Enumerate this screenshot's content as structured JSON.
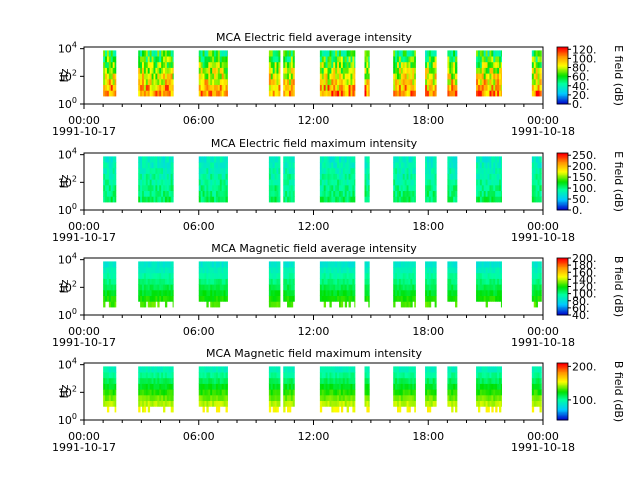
{
  "chart_data": [
    {
      "type": "heatmap",
      "title": "MCA  Electric field average intensity",
      "ylabel": "Hz",
      "colorbar_label": "E field (dB)",
      "colorbar_range": [
        0,
        125
      ],
      "colorbar_ticks": [
        "0.",
        "20.",
        "40.",
        "60.",
        "80.",
        "100.",
        "120."
      ],
      "y_ticks": [
        "10^0",
        "10^2",
        "10^4"
      ],
      "x_ticks": [
        "00:00",
        "06:00",
        "12:00",
        "18:00",
        "00:00"
      ],
      "x_date_start": "1991-10-17",
      "x_date_end": "1991-10-18",
      "data_intervals_utc": [
        [
          "01:00",
          "01:40"
        ],
        [
          "02:50",
          "04:40"
        ],
        [
          "06:00",
          "07:30"
        ],
        [
          "09:40",
          "10:15"
        ],
        [
          "10:25",
          "11:00"
        ],
        [
          "12:20",
          "14:10"
        ],
        [
          "14:40",
          "14:55"
        ],
        [
          "16:10",
          "17:20"
        ],
        [
          "17:50",
          "18:25"
        ],
        [
          "19:00",
          "19:30"
        ],
        [
          "20:30",
          "21:50"
        ],
        [
          "23:25",
          "23:55"
        ]
      ],
      "colormap": "rainbow"
    },
    {
      "type": "heatmap",
      "title": "MCA  Electric field maximum intensity",
      "ylabel": "Hz",
      "colorbar_label": "E field (dB)",
      "colorbar_range": [
        0,
        260
      ],
      "colorbar_ticks": [
        "0.",
        "50.",
        "100.",
        "150.",
        "200.",
        "250."
      ],
      "y_ticks": [
        "10^0",
        "10^2",
        "10^4"
      ],
      "x_ticks": [
        "00:00",
        "06:00",
        "12:00",
        "18:00",
        "00:00"
      ],
      "x_date_start": "1991-10-17",
      "x_date_end": "1991-10-18",
      "data_intervals_utc": [
        [
          "01:00",
          "01:40"
        ],
        [
          "02:50",
          "04:40"
        ],
        [
          "06:00",
          "07:30"
        ],
        [
          "09:40",
          "10:15"
        ],
        [
          "10:25",
          "11:00"
        ],
        [
          "12:20",
          "14:10"
        ],
        [
          "14:40",
          "14:55"
        ],
        [
          "16:10",
          "17:20"
        ],
        [
          "17:50",
          "18:25"
        ],
        [
          "19:00",
          "19:30"
        ],
        [
          "20:30",
          "21:50"
        ],
        [
          "23:25",
          "23:55"
        ]
      ],
      "colormap": "rainbow"
    },
    {
      "type": "heatmap",
      "title": "MCA  Magnetic field average intensity",
      "ylabel": "Hz",
      "colorbar_label": "B field (dB)",
      "colorbar_range": [
        40,
        200
      ],
      "colorbar_ticks": [
        "40.",
        "60.",
        "80.",
        "100.",
        "120.",
        "140.",
        "160.",
        "180.",
        "200."
      ],
      "y_ticks": [
        "10^0",
        "10^2",
        "10^4"
      ],
      "x_ticks": [
        "00:00",
        "06:00",
        "12:00",
        "18:00",
        "00:00"
      ],
      "x_date_start": "1991-10-17",
      "x_date_end": "1991-10-18",
      "data_intervals_utc": [
        [
          "01:00",
          "01:40"
        ],
        [
          "02:50",
          "04:40"
        ],
        [
          "06:00",
          "07:30"
        ],
        [
          "09:40",
          "10:15"
        ],
        [
          "10:25",
          "11:00"
        ],
        [
          "12:20",
          "14:10"
        ],
        [
          "14:40",
          "14:55"
        ],
        [
          "16:10",
          "17:20"
        ],
        [
          "17:50",
          "18:25"
        ],
        [
          "19:00",
          "19:30"
        ],
        [
          "20:30",
          "21:50"
        ],
        [
          "23:25",
          "23:55"
        ]
      ],
      "colormap": "rainbow"
    },
    {
      "type": "heatmap",
      "title": "MCA  Magnetic field maximum intensity",
      "ylabel": "Hz",
      "colorbar_label": "B field (dB)",
      "colorbar_range": [
        40,
        210
      ],
      "colorbar_ticks": [
        "100.",
        "200."
      ],
      "y_ticks": [
        "10^0",
        "10^2",
        "10^4"
      ],
      "x_ticks": [
        "00:00",
        "06:00",
        "12:00",
        "18:00",
        "00:00"
      ],
      "x_date_start": "1991-10-17",
      "x_date_end": "1991-10-18",
      "data_intervals_utc": [
        [
          "01:00",
          "01:40"
        ],
        [
          "02:50",
          "04:40"
        ],
        [
          "06:00",
          "07:30"
        ],
        [
          "09:40",
          "10:15"
        ],
        [
          "10:25",
          "11:00"
        ],
        [
          "12:20",
          "14:10"
        ],
        [
          "14:40",
          "14:55"
        ],
        [
          "16:10",
          "17:20"
        ],
        [
          "17:50",
          "18:25"
        ],
        [
          "19:00",
          "19:30"
        ],
        [
          "20:30",
          "21:50"
        ],
        [
          "23:25",
          "23:55"
        ]
      ],
      "colormap": "rainbow"
    }
  ]
}
